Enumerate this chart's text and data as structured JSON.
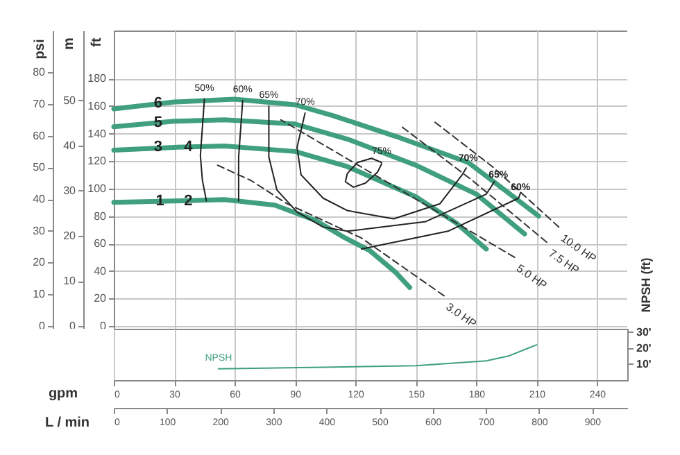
{
  "chart_data": [
    {
      "type": "line",
      "ylabel": "ft",
      "y2label": "m",
      "y3label": "psi",
      "xlim": [
        0,
        255
      ],
      "xticks": [
        0,
        30,
        60,
        90,
        120,
        150,
        180,
        210,
        240
      ],
      "ylim": [
        -2,
        215
      ],
      "yticks": [
        0,
        20,
        40,
        60,
        80,
        100,
        120,
        140,
        160,
        180
      ],
      "y2lim": [
        -0.6,
        65.5
      ],
      "y2ticks": [
        0,
        10,
        20,
        30,
        40,
        50
      ],
      "y3lim": [
        -0.9,
        93.2
      ],
      "y3ticks": [
        0,
        10,
        20,
        30,
        40,
        50,
        60,
        70,
        80
      ],
      "tick_labels": "y",
      "grid": true,
      "marker": "none",
      "series": [
        {
          "color": "#3f9f7f",
          "line_style": "solid",
          "x": [
            0,
            30,
            60,
            90,
            109,
            140,
            176,
            195,
            211
          ],
          "values": [
            158,
            163,
            165,
            161,
            153,
            138,
            119,
            98,
            80
          ]
        },
        {
          "color": "#3f9f7f",
          "line_style": "solid",
          "x": [
            0,
            30,
            55,
            90,
            116,
            150,
            180,
            204
          ],
          "values": [
            145,
            149,
            150,
            147,
            136,
            117,
            96,
            67
          ]
        },
        {
          "color": "#3f9f7f",
          "line_style": "solid",
          "x": [
            0,
            30,
            55,
            90,
            116,
            150,
            170,
            185
          ],
          "values": [
            128,
            130,
            131,
            127,
            116,
            94,
            75,
            56
          ]
        },
        {
          "color": "#3f9f7f",
          "line_style": "solid",
          "x": [
            0,
            30,
            55,
            80,
            100,
            115,
            127,
            140,
            147
          ],
          "values": [
            90,
            91,
            92,
            88,
            77,
            64,
            55,
            39,
            28
          ]
        },
        {
          "name": "50%",
          "color": "#222222",
          "line_style": "solid",
          "x": [
            45,
            43,
            44,
            46
          ],
          "values": [
            165,
            124,
            106,
            91
          ]
        },
        {
          "name": "60%",
          "color": "#222222",
          "line_style": "solid",
          "x": [
            64,
            62,
            62,
            90,
            123,
            166,
            201,
            202
          ],
          "values": [
            164,
            123,
            91,
            null,
            56,
            69,
            93,
            97
          ]
        },
        {
          "name": "65%",
          "color": "#222222",
          "line_style": "solid",
          "x": [
            77,
            77,
            81,
            91,
            104,
            116,
            155,
            185,
            189
          ],
          "values": [
            160,
            123,
            99,
            83,
            72,
            69,
            76,
            96,
            105
          ]
        },
        {
          "name": "70%",
          "color": "#222222",
          "line_style": "solid",
          "x": [
            95,
            91,
            93,
            104,
            116,
            139,
            162,
            173,
            175
          ],
          "values": [
            155,
            130,
            110,
            93,
            84,
            78,
            89,
            110,
            115
          ]
        },
        {
          "name": "75%",
          "color": "#222222",
          "line_style": "solid",
          "x": [
            133,
            128,
            121,
            116,
            115,
            119,
            125,
            131,
            133
          ],
          "values": [
            119,
            122,
            119,
            111,
            105,
            101,
            104,
            112,
            118
          ]
        },
        {
          "name": "3.0 HP",
          "color": "#333333",
          "line_style": "dashed",
          "x": [
            164,
            123,
            86,
            68,
            50
          ],
          "values": [
            22,
            64,
            89,
            106,
            118
          ]
        },
        {
          "name": "5.0 HP",
          "color": "#333333",
          "line_style": "dashed",
          "x": [
            199,
            140,
            83
          ],
          "values": [
            50,
            101,
            150
          ]
        },
        {
          "name": "7.5 HP",
          "color": "#333333",
          "line_style": "dashed",
          "x": [
            215,
            178,
            143
          ],
          "values": [
            61,
            106,
            145
          ]
        },
        {
          "name": "10.0 HP",
          "color": "#333333",
          "line_style": "dashed",
          "x": [
            221,
            188,
            158
          ],
          "values": [
            72,
            116,
            150
          ]
        }
      ],
      "annotations": [
        {
          "text": "6",
          "x": 22,
          "y": 162
        },
        {
          "text": "5",
          "x": 22,
          "y": 148
        },
        {
          "text": "3",
          "x": 22,
          "y": 130
        },
        {
          "text": "4",
          "x": 37,
          "y": 130
        },
        {
          "text": "1",
          "x": 23,
          "y": 91
        },
        {
          "text": "2",
          "x": 37,
          "y": 91
        },
        {
          "text": "70%",
          "x": 176,
          "y": 122
        },
        {
          "text": "65%",
          "x": 191,
          "y": 110
        },
        {
          "text": "60%",
          "x": 202,
          "y": 101
        }
      ]
    },
    {
      "type": "line",
      "xlabel": "gpm",
      "x2label": "L / min",
      "ylabel": "NPSH (ft)",
      "xlim": [
        0,
        255
      ],
      "xticks": [
        0,
        30,
        60,
        90,
        120,
        150,
        180,
        210,
        240
      ],
      "x2lim": [
        0,
        966
      ],
      "x2ticks": [
        0,
        100,
        200,
        300,
        400,
        500,
        600,
        700,
        800,
        900
      ],
      "ylim": [
        0,
        32
      ],
      "yticks": [
        {
          "value": 10,
          "label": "10'"
        },
        {
          "value": 20,
          "label": "20'"
        },
        {
          "value": 30,
          "label": "30'"
        }
      ],
      "grid": "x",
      "marker": "none",
      "series": [
        {
          "name": "NPSH",
          "color": "#3f9f7f",
          "line_style": "solid",
          "x": [
            52,
            104,
            150,
            185,
            196,
            210
          ],
          "values": [
            7,
            8,
            9,
            12,
            15,
            22
          ]
        }
      ]
    }
  ]
}
